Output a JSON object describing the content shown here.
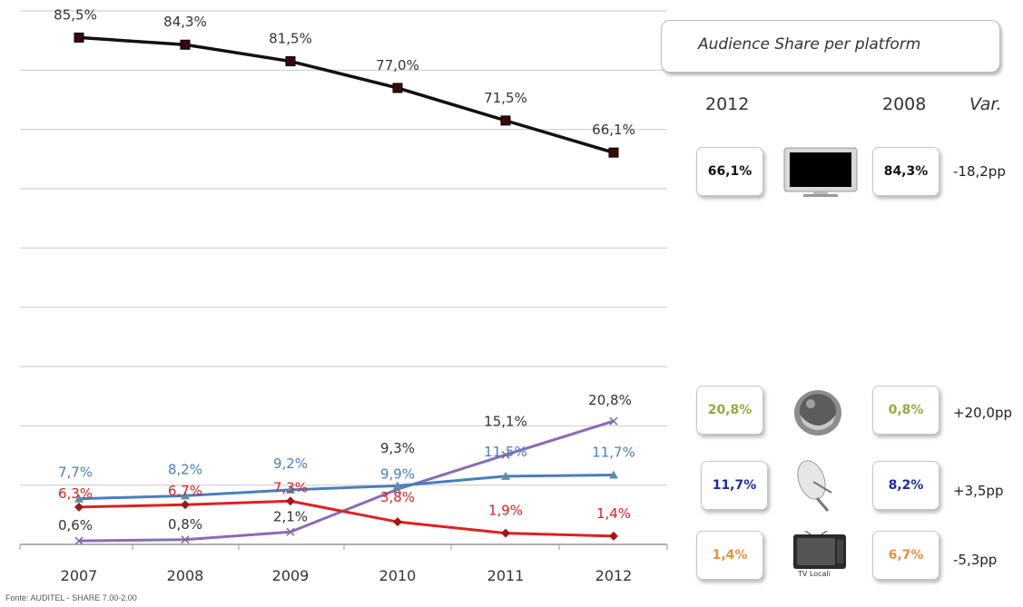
{
  "chart_data": {
    "type": "line",
    "categories": [
      "2007",
      "2008",
      "2009",
      "2010",
      "2011",
      "2012"
    ],
    "ylim": [
      0,
      90
    ],
    "grid": true,
    "series": [
      {
        "values": [
          85.5,
          84.3,
          81.5,
          77.0,
          71.5,
          66.1
        ],
        "labels": [
          "85,5%",
          "84,3%",
          "81,5%",
          "77,0%",
          "71,5%",
          "66,1%"
        ],
        "color": "#111111",
        "marker": "square"
      },
      {
        "values": [
          0.6,
          0.8,
          2.1,
          9.3,
          15.1,
          20.8
        ],
        "labels": [
          "0,6%",
          "0,8%",
          "2,1%",
          "9,3%",
          "15,1%",
          "20,8%"
        ],
        "color": "#8a6bb5",
        "label_color": "#333333",
        "marker": "x"
      },
      {
        "values": [
          7.7,
          8.2,
          9.2,
          9.9,
          11.5,
          11.7
        ],
        "labels": [
          "7,7%",
          "8,2%",
          "9,2%",
          "9,9%",
          "11,5%",
          "11,7%"
        ],
        "color": "#4a7dbf",
        "marker": "triangle"
      },
      {
        "values": [
          6.3,
          6.7,
          7.3,
          3.8,
          1.9,
          1.4
        ],
        "labels": [
          "6,3%",
          "6,7%",
          "7,3%",
          "3,8%",
          "1,9%",
          "1,4%"
        ],
        "color": "#e02020",
        "marker": "diamond"
      }
    ]
  },
  "source": "Fonte: AUDITEL - SHARE 7.00-2.00",
  "panel": {
    "title": "Audience Share per platform",
    "col_2012": "2012",
    "col_2008": "2008",
    "col_var": "Var.",
    "rows": [
      {
        "v2012": "66,1%",
        "v2008": "84,3%",
        "var": "-18,2pp",
        "color": "#111111",
        "icon": "flat-tv-icon"
      },
      {
        "v2012": "20,8%",
        "v2008": "0,8%",
        "var": "+20,0pp",
        "color": "#8fae3c",
        "icon": "sky-decoder-icon"
      },
      {
        "v2012": "11,7%",
        "v2008": "8,2%",
        "var": "+3,5pp",
        "color": "#1a2aa8",
        "icon": "satellite-dish-icon"
      },
      {
        "v2012": "1,4%",
        "v2008": "6,7%",
        "var": "-5,3pp",
        "color": "#e8913a",
        "icon": "old-tv-icon",
        "icon_caption": "TV Locali"
      }
    ]
  }
}
